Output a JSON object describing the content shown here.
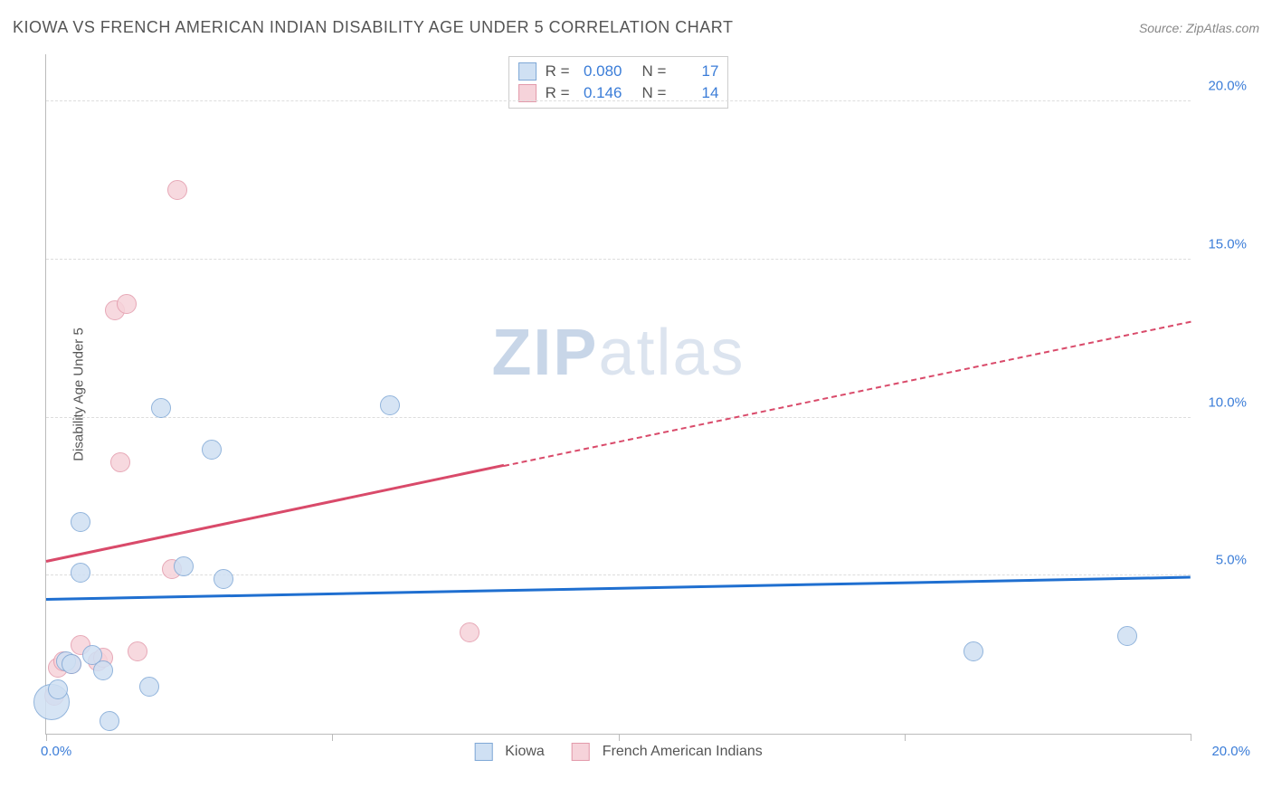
{
  "header": {
    "title": "KIOWA VS FRENCH AMERICAN INDIAN DISABILITY AGE UNDER 5 CORRELATION CHART",
    "source_prefix": "Source: ",
    "source_name": "ZipAtlas.com"
  },
  "chart": {
    "type": "scatter",
    "y_axis_label": "Disability Age Under 5",
    "xlim": [
      0,
      20
    ],
    "ylim": [
      0,
      21.5
    ],
    "x_tick_positions": [
      0,
      5,
      10,
      15,
      20
    ],
    "x_tick_labels_visible": {
      "min": "0.0%",
      "max": "20.0%"
    },
    "y_gridlines": [
      5,
      10,
      15,
      20
    ],
    "y_tick_labels": [
      "5.0%",
      "10.0%",
      "15.0%",
      "20.0%"
    ],
    "axis_label_color": "#3b7dd8",
    "grid_color": "#dddddd",
    "axis_line_color": "#bbbbbb",
    "background_color": "#ffffff",
    "watermark": "ZIPatlas",
    "series": {
      "kiowa": {
        "label": "Kiowa",
        "fill": "#cfe0f3",
        "stroke": "#7fa8d6",
        "trend_color": "#1f6fd0",
        "R": "0.080",
        "N": "17",
        "marker_radius": 11,
        "trend": {
          "x1": 0,
          "y1": 4.2,
          "x2": 20,
          "y2": 4.9,
          "dashed_from_x": null
        },
        "points": [
          {
            "x": 0.1,
            "y": 1.0,
            "r": 20
          },
          {
            "x": 0.2,
            "y": 1.4,
            "r": 11
          },
          {
            "x": 0.35,
            "y": 2.3,
            "r": 11
          },
          {
            "x": 0.45,
            "y": 2.2,
            "r": 11
          },
          {
            "x": 0.8,
            "y": 2.5,
            "r": 11
          },
          {
            "x": 1.0,
            "y": 2.0,
            "r": 11
          },
          {
            "x": 1.1,
            "y": 0.4,
            "r": 11
          },
          {
            "x": 1.8,
            "y": 1.5,
            "r": 11
          },
          {
            "x": 0.6,
            "y": 5.1,
            "r": 11
          },
          {
            "x": 0.6,
            "y": 6.7,
            "r": 11
          },
          {
            "x": 2.4,
            "y": 5.3,
            "r": 11
          },
          {
            "x": 3.1,
            "y": 4.9,
            "r": 11
          },
          {
            "x": 2.0,
            "y": 10.3,
            "r": 11
          },
          {
            "x": 2.9,
            "y": 9.0,
            "r": 11
          },
          {
            "x": 6.0,
            "y": 10.4,
            "r": 11
          },
          {
            "x": 16.2,
            "y": 2.6,
            "r": 11
          },
          {
            "x": 18.9,
            "y": 3.1,
            "r": 11
          }
        ]
      },
      "french": {
        "label": "French American Indians",
        "fill": "#f6d3da",
        "stroke": "#e39aab",
        "trend_color": "#d94a6a",
        "R": "0.146",
        "N": "14",
        "marker_radius": 11,
        "trend": {
          "x1": 0,
          "y1": 5.4,
          "x2": 20,
          "y2": 13.0,
          "dashed_from_x": 8.0
        },
        "points": [
          {
            "x": 0.15,
            "y": 1.2,
            "r": 11
          },
          {
            "x": 0.2,
            "y": 2.1,
            "r": 11
          },
          {
            "x": 0.3,
            "y": 2.3,
            "r": 11
          },
          {
            "x": 0.45,
            "y": 2.2,
            "r": 11
          },
          {
            "x": 0.6,
            "y": 2.8,
            "r": 11
          },
          {
            "x": 0.9,
            "y": 2.3,
            "r": 11
          },
          {
            "x": 1.0,
            "y": 2.4,
            "r": 11
          },
          {
            "x": 1.6,
            "y": 2.6,
            "r": 11
          },
          {
            "x": 2.2,
            "y": 5.2,
            "r": 11
          },
          {
            "x": 1.3,
            "y": 8.6,
            "r": 11
          },
          {
            "x": 1.2,
            "y": 13.4,
            "r": 11
          },
          {
            "x": 1.4,
            "y": 13.6,
            "r": 11
          },
          {
            "x": 2.3,
            "y": 17.2,
            "r": 11
          },
          {
            "x": 7.4,
            "y": 3.2,
            "r": 11
          }
        ]
      }
    },
    "stats_box": {
      "R_label": "R =",
      "N_label": "N ="
    }
  }
}
